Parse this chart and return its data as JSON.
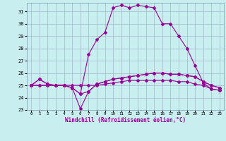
{
  "xlabel": "Windchill (Refroidissement éolien,°C)",
  "background_color": "#c8eef0",
  "grid_color": "#a0b8c8",
  "line_color": "#990099",
  "hours": [
    0,
    1,
    2,
    3,
    4,
    5,
    6,
    7,
    8,
    9,
    10,
    11,
    12,
    13,
    14,
    15,
    16,
    17,
    18,
    19,
    20,
    21,
    22,
    23
  ],
  "temp": [
    25.0,
    25.5,
    25.1,
    25.0,
    25.0,
    24.8,
    24.3,
    27.5,
    28.7,
    29.3,
    31.3,
    31.5,
    31.3,
    31.5,
    31.4,
    31.3,
    30.0,
    30.0,
    29.0,
    28.0,
    26.6,
    25.2,
    24.7,
    24.6
  ],
  "windchill": [
    25.0,
    25.0,
    25.0,
    25.0,
    25.0,
    24.8,
    23.1,
    24.5,
    25.1,
    25.3,
    25.5,
    25.6,
    25.7,
    25.8,
    25.9,
    26.0,
    26.0,
    25.9,
    25.9,
    25.8,
    25.7,
    25.3,
    25.0,
    24.8
  ],
  "dewpoint": [
    25.0,
    25.0,
    25.0,
    25.0,
    25.0,
    25.0,
    25.0,
    25.0,
    25.0,
    25.1,
    25.2,
    25.3,
    25.4,
    25.4,
    25.4,
    25.4,
    25.4,
    25.4,
    25.3,
    25.3,
    25.1,
    25.0,
    24.7,
    24.6
  ],
  "apparent": [
    25.0,
    25.5,
    25.1,
    25.0,
    25.0,
    24.8,
    24.3,
    24.5,
    25.1,
    25.3,
    25.5,
    25.6,
    25.7,
    25.8,
    25.9,
    26.0,
    26.0,
    25.9,
    25.9,
    25.8,
    25.7,
    25.3,
    25.0,
    24.8
  ],
  "ylim": [
    23.0,
    31.7
  ],
  "yticks": [
    23,
    24,
    25,
    26,
    27,
    28,
    29,
    30,
    31
  ],
  "xlim": [
    -0.5,
    23.5
  ]
}
